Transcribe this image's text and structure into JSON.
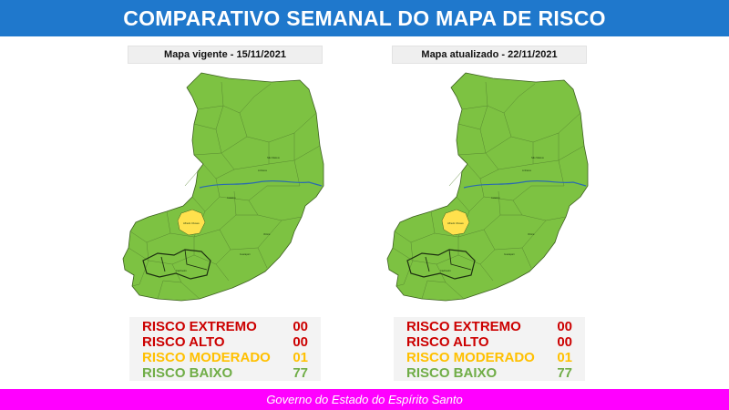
{
  "title": "COMPARATIVO SEMANAL DO MAPA DE RISCO",
  "footer": "Governo do Estado do Espírito Santo",
  "colors": {
    "title_bg": "#1f78cc",
    "footer_bg": "#ff00ff",
    "risk_baixo": "#7dc242",
    "risk_moderado": "#ffe14d",
    "extremo": "#cc0000",
    "alto": "#cc0000",
    "moderado": "#ffc000",
    "baixo": "#70ad47"
  },
  "panels": [
    {
      "label": "Mapa vigente - 15/11/2021",
      "risk": [
        {
          "name": "RISCO EXTREMO",
          "value": "00"
        },
        {
          "name": "RISCO ALTO",
          "value": "00"
        },
        {
          "name": "RISCO MODERADO",
          "value": "01"
        },
        {
          "name": "RISCO BAIXO",
          "value": "77"
        }
      ]
    },
    {
      "label": "Mapa atualizado - 22/11/2021",
      "risk": [
        {
          "name": "RISCO EXTREMO",
          "value": "00"
        },
        {
          "name": "RISCO ALTO",
          "value": "00"
        },
        {
          "name": "RISCO MODERADO",
          "value": "01"
        },
        {
          "name": "RISCO BAIXO",
          "value": "77"
        }
      ]
    }
  ],
  "map_labels": {
    "sao_mateus": "São Mateus",
    "linhares": "Linhares",
    "colatina": "Colatina",
    "alfredo_chaves": "Alfredo Chaves",
    "vitoria": "Vitória",
    "guarapari": "Guarapari",
    "cachoeiro": "Cachoeiro"
  }
}
